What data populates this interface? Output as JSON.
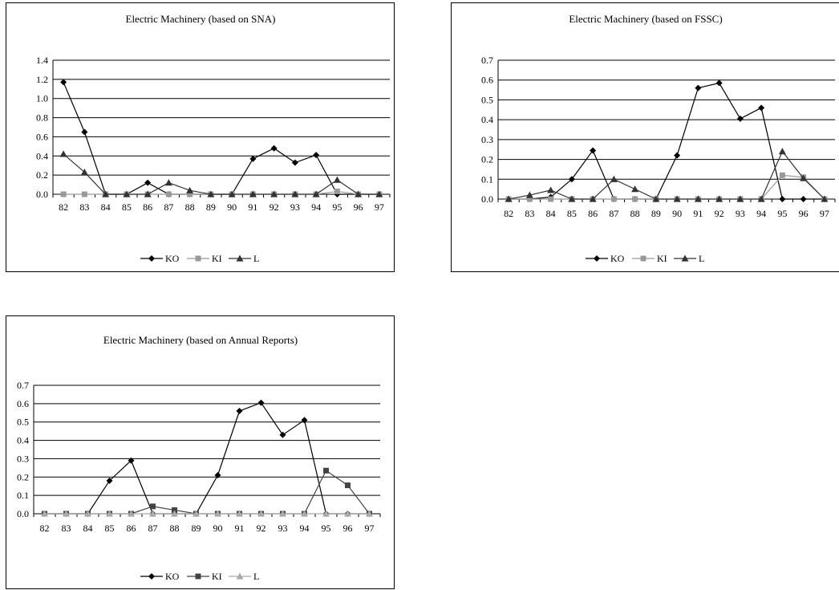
{
  "chart_data": [
    {
      "type": "line",
      "title": "Electric Machinery (based on SNA)",
      "categories": [
        "82",
        "83",
        "84",
        "85",
        "86",
        "87",
        "88",
        "89",
        "90",
        "91",
        "92",
        "93",
        "94",
        "95",
        "96",
        "97"
      ],
      "ylim": [
        0,
        1.4
      ],
      "yticks": [
        "0.0",
        "0.2",
        "0.4",
        "0.6",
        "0.8",
        "1.0",
        "1.2",
        "1.4"
      ],
      "grid": true,
      "legend": "bottom",
      "series": [
        {
          "name": "KO",
          "color": "#000000",
          "marker": "diamond",
          "values": [
            1.17,
            0.65,
            0,
            0,
            0.12,
            0,
            0,
            0,
            0,
            0.37,
            0.48,
            0.33,
            0.41,
            0,
            0,
            0
          ]
        },
        {
          "name": "KI",
          "color": "#999999",
          "marker": "square",
          "values": [
            0,
            0,
            0,
            0,
            0,
            0,
            0,
            0,
            0,
            0,
            0,
            0,
            0,
            0.03,
            0,
            0
          ]
        },
        {
          "name": "L",
          "color": "#333333",
          "marker": "triangle",
          "values": [
            0.42,
            0.23,
            0,
            0,
            0,
            0.12,
            0.04,
            0,
            0,
            0,
            0,
            0,
            0,
            0.15,
            0,
            0
          ]
        }
      ]
    },
    {
      "type": "line",
      "title": "Electric Machinery (based on FSSC)",
      "categories": [
        "82",
        "83",
        "84",
        "85",
        "86",
        "87",
        "88",
        "89",
        "90",
        "91",
        "92",
        "93",
        "94",
        "95",
        "96",
        "97"
      ],
      "ylim": [
        0,
        0.7
      ],
      "yticks": [
        "0.0",
        "0.1",
        "0.2",
        "0.3",
        "0.4",
        "0.5",
        "0.6",
        "0.7"
      ],
      "grid": true,
      "legend": "bottom",
      "series": [
        {
          "name": "KO",
          "color": "#000000",
          "marker": "diamond",
          "values": [
            0,
            0,
            0.01,
            0.1,
            0.245,
            0,
            0,
            0,
            0.22,
            0.56,
            0.585,
            0.405,
            0.46,
            0,
            0,
            0
          ]
        },
        {
          "name": "KI",
          "color": "#999999",
          "marker": "square",
          "values": [
            0,
            0,
            0,
            0,
            0,
            0,
            0,
            0,
            0,
            0,
            0,
            0,
            0,
            0.12,
            0.11,
            0
          ]
        },
        {
          "name": "L",
          "color": "#333333",
          "marker": "triangle",
          "values": [
            0,
            0.02,
            0.045,
            0,
            0,
            0.1,
            0.05,
            0,
            0,
            0,
            0,
            0,
            0,
            0.24,
            0.105,
            0
          ]
        }
      ]
    },
    {
      "type": "line",
      "title": "Electric Machinery (based on Annual Reports)",
      "categories": [
        "82",
        "83",
        "84",
        "85",
        "86",
        "87",
        "88",
        "89",
        "90",
        "91",
        "92",
        "93",
        "94",
        "95",
        "96",
        "97"
      ],
      "ylim": [
        0,
        0.7
      ],
      "yticks": [
        "0.0",
        "0.1",
        "0.2",
        "0.3",
        "0.4",
        "0.5",
        "0.6",
        "0.7"
      ],
      "grid": true,
      "legend": "bottom",
      "series": [
        {
          "name": "KO",
          "color": "#000000",
          "marker": "diamond",
          "values": [
            0,
            0,
            0,
            0.18,
            0.29,
            0,
            0,
            0,
            0.21,
            0.56,
            0.605,
            0.43,
            0.51,
            0,
            0,
            0
          ]
        },
        {
          "name": "KI",
          "color": "#444444",
          "marker": "square",
          "values": [
            0,
            0,
            0,
            0,
            0,
            0.04,
            0.02,
            0,
            0,
            0,
            0,
            0,
            0,
            0.235,
            0.155,
            0
          ]
        },
        {
          "name": "L",
          "color": "#aaaaaa",
          "marker": "triangle",
          "values": [
            0,
            0,
            0,
            0,
            0,
            0,
            0,
            0,
            0,
            0,
            0,
            0,
            0,
            0,
            0,
            0
          ]
        }
      ]
    }
  ]
}
